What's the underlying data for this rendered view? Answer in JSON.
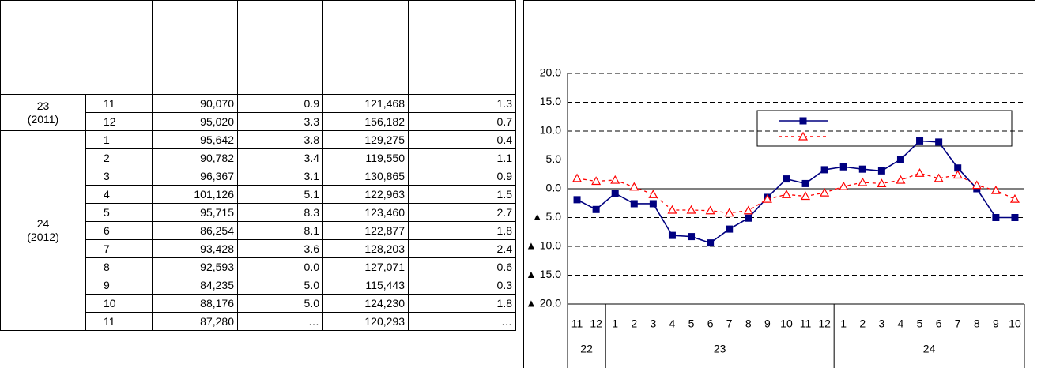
{
  "table": {
    "groups": [
      {
        "year": "23",
        "era": "(2011)",
        "rows": [
          [
            "11",
            "90,070",
            "0.9",
            "121,468",
            "1.3"
          ],
          [
            "12",
            "95,020",
            "3.3",
            "156,182",
            "0.7"
          ]
        ]
      },
      {
        "year": "24",
        "era": "(2012)",
        "rows": [
          [
            "1",
            "95,642",
            "3.8",
            "129,275",
            "0.4"
          ],
          [
            "2",
            "90,782",
            "3.4",
            "119,550",
            "1.1"
          ],
          [
            "3",
            "96,367",
            "3.1",
            "130,865",
            "0.9"
          ],
          [
            "4",
            "101,126",
            "5.1",
            "122,963",
            "1.5"
          ],
          [
            "5",
            "95,715",
            "8.3",
            "123,460",
            "2.7"
          ],
          [
            "6",
            "86,254",
            "8.1",
            "122,877",
            "1.8"
          ],
          [
            "7",
            "93,428",
            "3.6",
            "128,203",
            "2.4"
          ],
          [
            "8",
            "92,593",
            "0.0",
            "127,071",
            "0.6"
          ],
          [
            "9",
            "84,235",
            "5.0",
            "115,443",
            "0.3"
          ],
          [
            "10",
            "88,176",
            "5.0",
            "124,230",
            "1.8"
          ],
          [
            "11",
            "87,280",
            "…",
            "120,293",
            "…"
          ]
        ]
      }
    ]
  },
  "chart_data": {
    "type": "line",
    "categories": [
      "11",
      "12",
      "1",
      "2",
      "3",
      "4",
      "5",
      "6",
      "7",
      "8",
      "9",
      "10",
      "11",
      "12",
      "1",
      "2",
      "3",
      "4",
      "5",
      "6",
      "7",
      "8",
      "9",
      "10"
    ],
    "year_labels": [
      "22",
      "23",
      "24"
    ],
    "series": [
      {
        "color": "#000080",
        "marker": "square",
        "values": [
          -1.9,
          -3.6,
          -0.8,
          -2.6,
          -2.6,
          -8.1,
          -8.3,
          -9.4,
          -7.0,
          -5.1,
          -1.5,
          1.7,
          0.9,
          3.3,
          3.8,
          3.4,
          3.1,
          5.1,
          8.3,
          8.1,
          3.6,
          0.0,
          -5.0,
          -5.0
        ]
      },
      {
        "color": "#ff0000",
        "marker": "triangle",
        "dashed": true,
        "values": [
          1.8,
          1.3,
          1.5,
          0.3,
          -1.0,
          -3.7,
          -3.7,
          -3.8,
          -4.2,
          -3.8,
          -1.8,
          -1.0,
          -1.3,
          -0.7,
          0.4,
          1.1,
          0.9,
          1.5,
          2.7,
          1.8,
          2.4,
          0.6,
          -0.3,
          -1.8
        ]
      }
    ],
    "ylim": [
      -20,
      20
    ],
    "yticks": [
      {
        "value": 20,
        "label": "20.0"
      },
      {
        "value": 15,
        "label": "15.0"
      },
      {
        "value": 10,
        "label": "10.0"
      },
      {
        "value": 5,
        "label": "5.0"
      },
      {
        "value": 0,
        "label": "0.0"
      },
      {
        "value": -5,
        "label": "▲ 5.0"
      },
      {
        "value": -10,
        "label": "▲ 10.0"
      },
      {
        "value": -15,
        "label": "▲ 15.0"
      },
      {
        "value": -20,
        "label": "▲ 20.0"
      }
    ],
    "grid": true
  }
}
